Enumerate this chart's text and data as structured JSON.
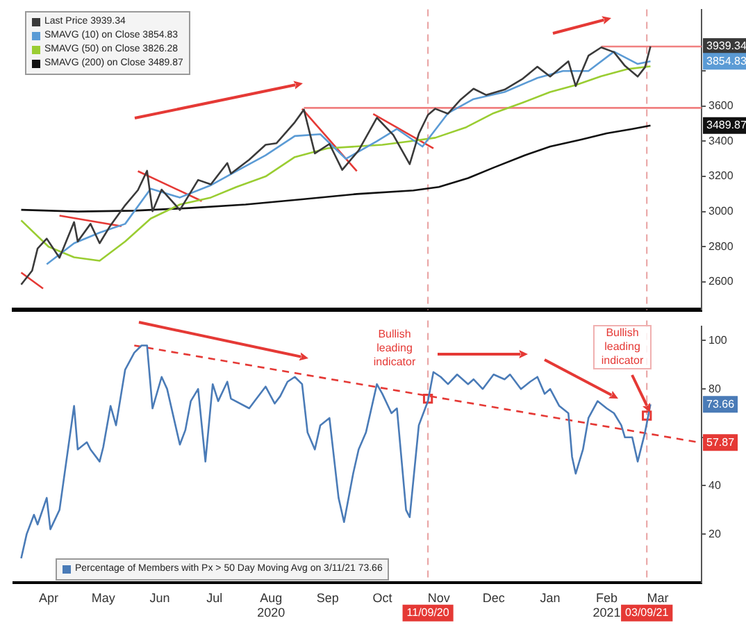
{
  "chart_data": [
    {
      "type": "line",
      "legend": "top left",
      "tick_labels": "y",
      "grid": false,
      "marker": "none",
      "xlim": [
        "2020-03-27",
        "2021-04-08"
      ],
      "ylim": [
        2440,
        4150
      ],
      "yticks": [
        2600,
        2800,
        3000,
        3200,
        3400,
        3600,
        {
          "value": 3800,
          "label": null
        }
      ],
      "series": [
        {
          "name": "Last Price 3939.34",
          "color": "#3a3a3a",
          "x": [
            "2020-03-31",
            "2020-04-06",
            "2020-04-09",
            "2020-04-14",
            "2020-04-21",
            "2020-04-29",
            "2020-05-01",
            "2020-05-08",
            "2020-05-13",
            "2020-05-19",
            "2020-05-27",
            "2020-06-03",
            "2020-06-08",
            "2020-06-11",
            "2020-06-16",
            "2020-06-26",
            "2020-07-06",
            "2020-07-13",
            "2020-07-22",
            "2020-07-24",
            "2020-08-03",
            "2020-08-12",
            "2020-08-18",
            "2020-08-28",
            "2020-09-02",
            "2020-09-08",
            "2020-09-16",
            "2020-09-23",
            "2020-10-02",
            "2020-10-12",
            "2020-10-21",
            "2020-10-30",
            "2020-11-04",
            "2020-11-09",
            "2020-11-13",
            "2020-11-20",
            "2020-11-27",
            "2020-12-04",
            "2020-12-11",
            "2020-12-21",
            "2020-12-31",
            "2021-01-08",
            "2021-01-15",
            "2021-01-25",
            "2021-01-29",
            "2021-02-05",
            "2021-02-12",
            "2021-02-19",
            "2021-02-25",
            "2021-03-04",
            "2021-03-08",
            "2021-03-11"
          ],
          "values": [
            2585,
            2664,
            2790,
            2846,
            2737,
            2940,
            2830,
            2930,
            2820,
            2922,
            3036,
            3122,
            3232,
            3002,
            3125,
            3009,
            3180,
            3155,
            3276,
            3216,
            3295,
            3380,
            3389,
            3508,
            3580,
            3331,
            3385,
            3237,
            3348,
            3534,
            3436,
            3270,
            3443,
            3550,
            3585,
            3557,
            3638,
            3699,
            3663,
            3694,
            3756,
            3824,
            3768,
            3855,
            3714,
            3887,
            3934,
            3907,
            3829,
            3768,
            3821,
            3939.34
          ]
        },
        {
          "name": "SMAVG (10) on Close 3854.83",
          "color": "#5b9bd5",
          "x": [
            "2020-04-14",
            "2020-04-29",
            "2020-05-13",
            "2020-05-27",
            "2020-06-10",
            "2020-06-26",
            "2020-07-13",
            "2020-07-27",
            "2020-08-12",
            "2020-08-28",
            "2020-09-11",
            "2020-09-25",
            "2020-10-12",
            "2020-10-23",
            "2020-11-06",
            "2020-11-20",
            "2020-12-04",
            "2020-12-21",
            "2021-01-08",
            "2021-01-22",
            "2021-02-05",
            "2021-02-19",
            "2021-03-04",
            "2021-03-11"
          ],
          "values": [
            2700,
            2820,
            2880,
            2930,
            3130,
            3080,
            3150,
            3230,
            3320,
            3430,
            3440,
            3300,
            3400,
            3470,
            3370,
            3560,
            3640,
            3680,
            3760,
            3800,
            3800,
            3910,
            3840,
            3854.83
          ]
        },
        {
          "name": "SMAVG (50) on Close 3826.28",
          "color": "#9acd32",
          "x": [
            "2020-03-31",
            "2020-04-15",
            "2020-04-29",
            "2020-05-13",
            "2020-05-27",
            "2020-06-10",
            "2020-06-26",
            "2020-07-13",
            "2020-07-27",
            "2020-08-12",
            "2020-08-28",
            "2020-09-15",
            "2020-09-30",
            "2020-10-15",
            "2020-10-30",
            "2020-11-13",
            "2020-11-30",
            "2020-12-15",
            "2020-12-31",
            "2021-01-15",
            "2021-01-29",
            "2021-02-12",
            "2021-02-26",
            "2021-03-11"
          ],
          "values": [
            2950,
            2800,
            2740,
            2720,
            2830,
            2960,
            3040,
            3080,
            3140,
            3200,
            3310,
            3360,
            3370,
            3380,
            3400,
            3420,
            3480,
            3560,
            3620,
            3680,
            3720,
            3770,
            3810,
            3826.28
          ]
        },
        {
          "name": "SMAVG (200) on Close 3489.87",
          "color": "#111111",
          "x": [
            "2020-03-31",
            "2020-05-01",
            "2020-06-01",
            "2020-07-01",
            "2020-08-01",
            "2020-09-01",
            "2020-10-01",
            "2020-11-01",
            "2020-11-15",
            "2020-12-01",
            "2020-12-15",
            "2021-01-01",
            "2021-01-15",
            "2021-02-01",
            "2021-02-15",
            "2021-03-01",
            "2021-03-11"
          ],
          "values": [
            3010,
            3000,
            3005,
            3020,
            3040,
            3070,
            3100,
            3120,
            3140,
            3190,
            3250,
            3320,
            3370,
            3410,
            3445,
            3470,
            3489.87
          ]
        },
        {
          "color": "#e53935",
          "x": [
            "2020-03-31",
            "2020-04-12"
          ],
          "values": [
            2653,
            2562
          ]
        },
        {
          "color": "#e53935",
          "x": [
            "2020-04-21",
            "2020-05-25"
          ],
          "values": [
            2977,
            2917
          ]
        },
        {
          "color": "#e53935",
          "x": [
            "2020-06-03",
            "2020-07-08"
          ],
          "values": [
            3230,
            3060
          ]
        },
        {
          "color": "#e53935",
          "x": [
            "2020-09-01",
            "2020-10-01"
          ],
          "values": [
            3585,
            3230
          ]
        },
        {
          "color": "#e53935",
          "x": [
            "2020-10-10",
            "2020-11-12"
          ],
          "values": [
            3555,
            3360
          ]
        },
        {
          "color": "#f08080",
          "x": [
            "2020-09-02",
            "2021-04-08"
          ],
          "values": [
            3590,
            3590
          ]
        },
        {
          "color": "#f08080",
          "x": [
            "2021-02-12",
            "2021-04-08"
          ],
          "values": [
            3939,
            3939
          ]
        }
      ],
      "ref_lines": [
        {
          "axis": "x",
          "value": "2020-11-09",
          "color": "#e8a0a0",
          "line_style": "dashed"
        },
        {
          "axis": "x",
          "value": "2021-03-09",
          "color": "#e8a0a0",
          "line_style": "dashed"
        }
      ],
      "annotations": [
        "3939.34",
        "3854.83",
        "3489.87"
      ]
    },
    {
      "type": "line",
      "legend": "bottom left",
      "grid": false,
      "marker": "none",
      "xlim": [
        "2020-03-27",
        "2021-04-08"
      ],
      "ylim": [
        0,
        106
      ],
      "yticks": [
        20,
        40,
        {
          "value": 60,
          "label": null
        },
        80,
        100
      ],
      "xticks": [
        {
          "value": "2020-04-15",
          "label": "Apr"
        },
        {
          "value": "2020-05-15",
          "label": "May"
        },
        {
          "value": "2020-06-15",
          "label": "Jun"
        },
        {
          "value": "2020-07-15",
          "label": "Jul"
        },
        {
          "value": "2020-08-15",
          "label": "Aug\n2020"
        },
        {
          "value": "2020-09-15",
          "label": "Sep"
        },
        {
          "value": "2020-10-15",
          "label": "Oct"
        },
        {
          "value": "2020-11-15",
          "label": "Nov"
        },
        {
          "value": "2020-12-15",
          "label": "Dec"
        },
        {
          "value": "2021-01-15",
          "label": "Jan"
        },
        {
          "value": "2021-02-15",
          "label": "Feb\n2021"
        },
        {
          "value": "2021-03-15",
          "label": "Mar"
        }
      ],
      "series": [
        {
          "name": "Percentage of Members with Px > 50 Day Moving Avg on 3/11/21 73.66",
          "color": "#4a7bb7",
          "x": [
            "2020-03-31",
            "2020-04-03",
            "2020-04-07",
            "2020-04-09",
            "2020-04-14",
            "2020-04-16",
            "2020-04-21",
            "2020-04-29",
            "2020-05-01",
            "2020-05-06",
            "2020-05-08",
            "2020-05-13",
            "2020-05-15",
            "2020-05-19",
            "2020-05-22",
            "2020-05-27",
            "2020-06-01",
            "2020-06-05",
            "2020-06-08",
            "2020-06-11",
            "2020-06-16",
            "2020-06-19",
            "2020-06-26",
            "2020-06-29",
            "2020-07-02",
            "2020-07-06",
            "2020-07-10",
            "2020-07-14",
            "2020-07-17",
            "2020-07-22",
            "2020-07-24",
            "2020-08-03",
            "2020-08-06",
            "2020-08-12",
            "2020-08-17",
            "2020-08-20",
            "2020-08-24",
            "2020-08-28",
            "2020-09-01",
            "2020-09-04",
            "2020-09-08",
            "2020-09-11",
            "2020-09-16",
            "2020-09-21",
            "2020-09-24",
            "2020-09-29",
            "2020-10-02",
            "2020-10-06",
            "2020-10-12",
            "2020-10-15",
            "2020-10-20",
            "2020-10-23",
            "2020-10-28",
            "2020-10-30",
            "2020-11-04",
            "2020-11-09",
            "2020-11-12",
            "2020-11-16",
            "2020-11-20",
            "2020-11-25",
            "2020-12-01",
            "2020-12-04",
            "2020-12-09",
            "2020-12-15",
            "2020-12-21",
            "2020-12-24",
            "2020-12-30",
            "2021-01-04",
            "2021-01-08",
            "2021-01-12",
            "2021-01-15",
            "2021-01-20",
            "2021-01-25",
            "2021-01-27",
            "2021-01-29",
            "2021-02-02",
            "2021-02-05",
            "2021-02-10",
            "2021-02-15",
            "2021-02-19",
            "2021-02-23",
            "2021-02-25",
            "2021-03-01",
            "2021-03-04",
            "2021-03-08",
            "2021-03-11"
          ],
          "values": [
            10,
            20,
            28,
            24,
            35,
            22,
            30,
            73,
            55,
            58,
            55,
            50,
            56,
            73,
            65,
            88,
            95,
            98,
            98,
            72,
            85,
            80,
            57,
            63,
            75,
            80,
            50,
            82,
            75,
            83,
            76,
            72,
            75,
            81,
            74,
            77,
            83,
            85,
            82,
            62,
            55,
            65,
            68,
            35,
            25,
            45,
            55,
            62,
            82,
            78,
            70,
            72,
            30,
            27,
            65,
            75,
            87,
            85,
            82,
            86,
            82,
            84,
            80,
            86,
            84,
            86,
            80,
            83,
            85,
            78,
            80,
            73,
            70,
            52,
            45,
            55,
            68,
            75,
            72,
            70,
            65,
            60,
            60,
            50,
            62,
            73.66
          ]
        },
        {
          "color": "#e53935",
          "line_style": "dashed",
          "x": [
            "2020-06-01",
            "2021-04-07"
          ],
          "values": [
            98,
            57.87
          ]
        },
        {
          "type": "scatter",
          "marker": "square",
          "color": "#e53935",
          "x": [
            "2020-11-09",
            "2021-03-09"
          ],
          "values": [
            76,
            69
          ]
        }
      ],
      "ref_lines": [
        {
          "axis": "x",
          "value": "2020-11-09",
          "label": "11/09/20",
          "color": "#e8a0a0",
          "line_style": "dashed"
        },
        {
          "axis": "x",
          "value": "2021-03-09",
          "label": "03/09/21",
          "color": "#e8a0a0",
          "line_style": "dashed"
        }
      ],
      "annotations": [
        "Bullish leading indicator",
        "Bullish leading indicator",
        "73.66",
        "57.87"
      ]
    }
  ]
}
